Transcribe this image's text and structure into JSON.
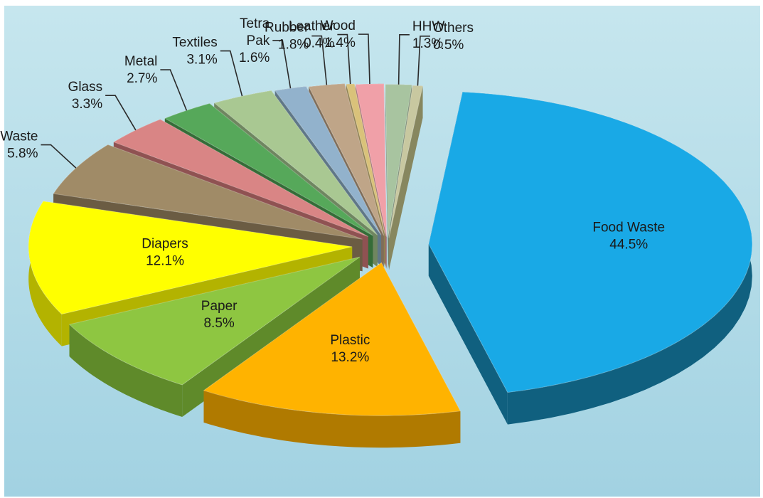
{
  "chart_data": {
    "type": "pie",
    "title": "",
    "style": "3d-exploded",
    "categories": [
      "Food Waste",
      "Plastic",
      "Paper",
      "Diapers",
      "Garden Waste",
      "Glass",
      "Metal",
      "Textiles",
      "Tetra Pak",
      "Rubber",
      "Leather",
      "Wood",
      "HHW",
      "Others"
    ],
    "values": [
      44.5,
      13.2,
      8.5,
      12.1,
      5.8,
      3.3,
      2.7,
      3.1,
      1.6,
      1.8,
      0.4,
      1.4,
      1.3,
      0.5
    ],
    "value_labels": [
      "44.5%",
      "13.2%",
      "8.5%",
      "12.1%",
      "5.8%",
      "3.3%",
      "2.7%",
      "3.1%",
      "1.6%",
      "1.8%",
      "0.4%",
      "1.4%",
      "1.3%",
      "0.5%"
    ],
    "label_lines": [
      [
        "Food Waste",
        "44.5%"
      ],
      [
        "Plastic",
        "13.2%"
      ],
      [
        "Paper",
        "8.5%"
      ],
      [
        "Diapers",
        "12.1%"
      ],
      [
        "Garden Waste",
        "5.8%"
      ],
      [
        "Glass",
        "3.3%"
      ],
      [
        "Metal",
        "2.7%"
      ],
      [
        "Textiles",
        "3.1%"
      ],
      [
        "Tetra",
        "Pak",
        "1.6%"
      ],
      [
        "Rubber",
        "1.8%"
      ],
      [
        "Leather",
        "0.4%"
      ],
      [
        "Wood",
        "1.4%"
      ],
      [
        "HHW",
        "1.3%"
      ],
      [
        "Others",
        "0.5%"
      ]
    ],
    "colors": [
      "#19a9e6",
      "#ffb300",
      "#8ec641",
      "#ffff00",
      "#a08b67",
      "#d98585",
      "#56a85a",
      "#a9c892",
      "#92b2cc",
      "#bfa588",
      "#d9c27a",
      "#f0a0a8",
      "#a8c4a0",
      "#c8c8a0"
    ],
    "side_colors": [
      "#10607f",
      "#b07a00",
      "#5f8a2a",
      "#b3b300",
      "#6b5c43",
      "#8f5252",
      "#356c38",
      "#6f8660",
      "#5f7787",
      "#7f6d59",
      "#8f7f4f",
      "#a06a70",
      "#6f8269",
      "#87875f"
    ],
    "background": "#a9d8e6"
  }
}
